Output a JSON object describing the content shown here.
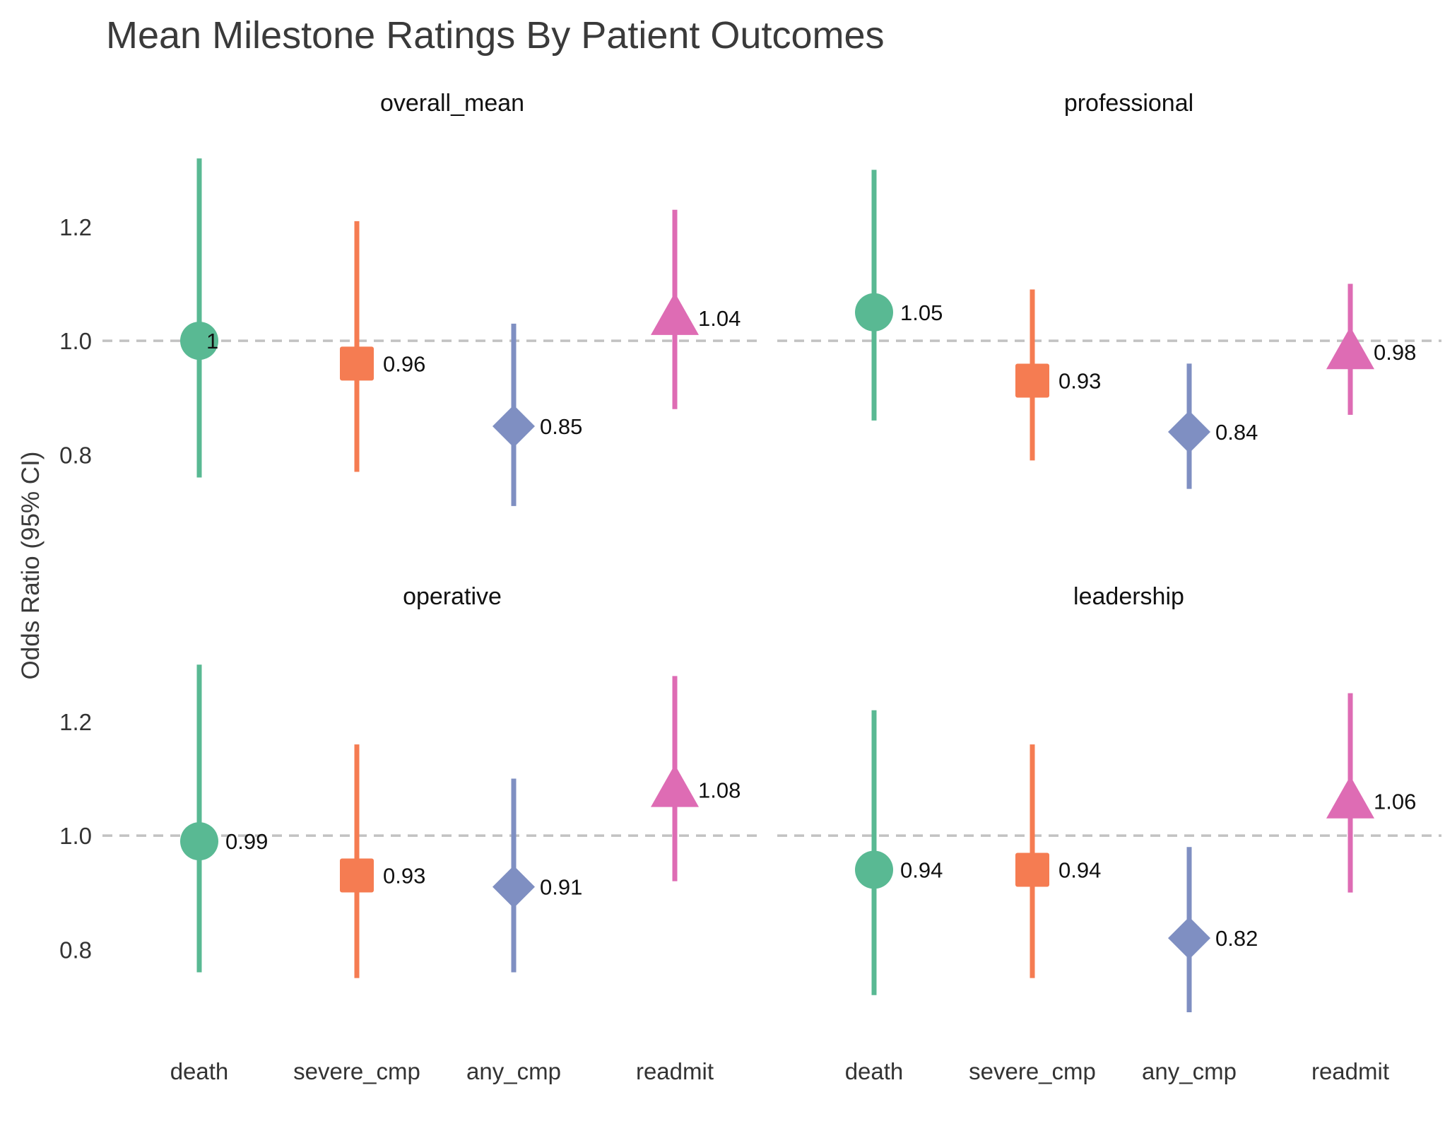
{
  "chart_data": {
    "type": "scatter",
    "title": "Mean Milestone Ratings By Patient Outcomes",
    "ylabel": "Odds Ratio (95% CI)",
    "xlabel": "",
    "categories": [
      "death",
      "severe_cmp",
      "any_cmp",
      "readmit"
    ],
    "yticks": [
      0.8,
      1.0,
      1.2
    ],
    "ytick_labels": [
      "0.8",
      "1.0",
      "1.2"
    ],
    "reference_line": 1.0,
    "legend": "none",
    "grid": false,
    "colors": {
      "death": "#59b993",
      "severe_cmp": "#f57c52",
      "any_cmp": "#7f8fc2",
      "readmit": "#de6cb4"
    },
    "markers": {
      "death": "circle",
      "severe_cmp": "square",
      "any_cmp": "diamond",
      "readmit": "triangle"
    },
    "panels": [
      {
        "name": "overall_mean",
        "ylim": [
          0.68,
          1.35
        ],
        "points": [
          {
            "outcome": "death",
            "or": 1.0,
            "lo": 0.76,
            "hi": 1.32,
            "label": "1"
          },
          {
            "outcome": "severe_cmp",
            "or": 0.96,
            "lo": 0.77,
            "hi": 1.21,
            "label": "0.96"
          },
          {
            "outcome": "any_cmp",
            "or": 0.85,
            "lo": 0.71,
            "hi": 1.03,
            "label": "0.85"
          },
          {
            "outcome": "readmit",
            "or": 1.04,
            "lo": 0.88,
            "hi": 1.23,
            "label": "1.04"
          }
        ]
      },
      {
        "name": "professional",
        "ylim": [
          0.68,
          1.35
        ],
        "points": [
          {
            "outcome": "death",
            "or": 1.05,
            "lo": 0.86,
            "hi": 1.3,
            "label": "1.05"
          },
          {
            "outcome": "severe_cmp",
            "or": 0.93,
            "lo": 0.79,
            "hi": 1.09,
            "label": "0.93"
          },
          {
            "outcome": "any_cmp",
            "or": 0.84,
            "lo": 0.74,
            "hi": 0.96,
            "label": "0.84"
          },
          {
            "outcome": "readmit",
            "or": 0.98,
            "lo": 0.87,
            "hi": 1.1,
            "label": "0.98"
          }
        ]
      },
      {
        "name": "operative",
        "ylim": [
          0.68,
          1.35
        ],
        "points": [
          {
            "outcome": "death",
            "or": 0.99,
            "lo": 0.76,
            "hi": 1.3,
            "label": "0.99"
          },
          {
            "outcome": "severe_cmp",
            "or": 0.93,
            "lo": 0.75,
            "hi": 1.16,
            "label": "0.93"
          },
          {
            "outcome": "any_cmp",
            "or": 0.91,
            "lo": 0.76,
            "hi": 1.1,
            "label": "0.91"
          },
          {
            "outcome": "readmit",
            "or": 1.08,
            "lo": 0.92,
            "hi": 1.28,
            "label": "1.08"
          }
        ]
      },
      {
        "name": "leadership",
        "ylim": [
          0.68,
          1.35
        ],
        "points": [
          {
            "outcome": "death",
            "or": 0.94,
            "lo": 0.72,
            "hi": 1.22,
            "label": "0.94"
          },
          {
            "outcome": "severe_cmp",
            "or": 0.94,
            "lo": 0.75,
            "hi": 1.16,
            "label": "0.94"
          },
          {
            "outcome": "any_cmp",
            "or": 0.82,
            "lo": 0.69,
            "hi": 0.98,
            "label": "0.82"
          },
          {
            "outcome": "readmit",
            "or": 1.06,
            "lo": 0.9,
            "hi": 1.25,
            "label": "1.06"
          }
        ]
      }
    ]
  }
}
